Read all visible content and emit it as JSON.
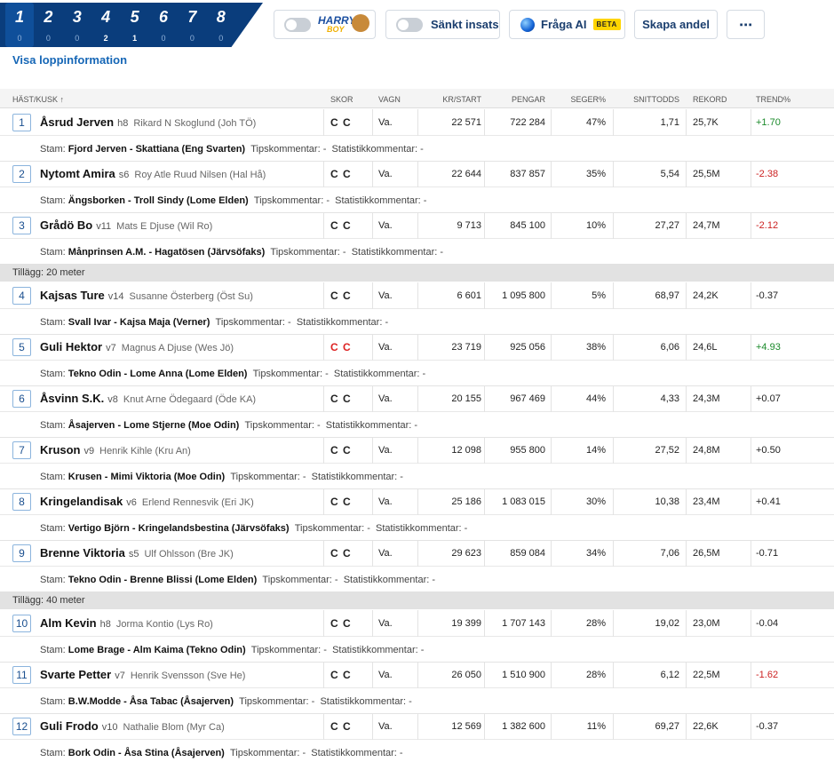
{
  "legs": [
    {
      "num": "1",
      "count": "0",
      "active": true
    },
    {
      "num": "2",
      "count": "0"
    },
    {
      "num": "3",
      "count": "0"
    },
    {
      "num": "4",
      "count": "2"
    },
    {
      "num": "5",
      "count": "1"
    },
    {
      "num": "6",
      "count": "0"
    },
    {
      "num": "7",
      "count": "0"
    },
    {
      "num": "8",
      "count": "0"
    }
  ],
  "toolbar": {
    "harry_line1": "HARRY",
    "harry_line2": "BOY",
    "reduced_stake_label": "Sänkt insats",
    "ask_ai_label": "Fråga AI",
    "beta_badge": "BETA",
    "create_share_label": "Skapa andel",
    "more_label": "⋯"
  },
  "race_info_link": "Visa loppinformation",
  "columns": {
    "horse": "HÄST/KUSK ↑",
    "shoes": "SKOR",
    "sulky": "VAGN",
    "kr_start": "KR/START",
    "money": "PENGAR",
    "win_pct": "SEGER%",
    "avg_odds": "SNITTODDS",
    "record": "REKORD",
    "trend": "TREND%"
  },
  "labels": {
    "stam": "Stam:",
    "tips": "Tipskommentar: -",
    "stat": "Statistikkommentar: -"
  },
  "rows": [
    {
      "type": "horse",
      "nr": "1",
      "name": "Åsrud Jerven",
      "age": "h8",
      "driver": "Rikard N Skoglund (Joh TÖ)",
      "shoes": "C C",
      "shoes_red": false,
      "sulky": "Va.",
      "kr_start": "22 571",
      "money": "722 284",
      "win": "47%",
      "odds": "1,71",
      "record": "25,7K",
      "trend": "+1.70",
      "trend_sign": "pos",
      "stam": "Fjord Jerven - Skattiana (Eng Svarten)"
    },
    {
      "type": "horse",
      "nr": "2",
      "name": "Nytomt Amira",
      "age": "s6",
      "driver": "Roy Atle Ruud Nilsen (Hal Hå)",
      "shoes": "C C",
      "shoes_red": false,
      "sulky": "Va.",
      "kr_start": "22 644",
      "money": "837 857",
      "win": "35%",
      "odds": "5,54",
      "record": "25,5M",
      "trend": "-2.38",
      "trend_sign": "neg",
      "stam": "Ängsborken - Troll Sindy (Lome Elden)"
    },
    {
      "type": "horse",
      "nr": "3",
      "name": "Grådö Bo",
      "age": "v11",
      "driver": "Mats E Djuse (Wil Ro)",
      "shoes": "C C",
      "shoes_red": false,
      "sulky": "Va.",
      "kr_start": "9 713",
      "money": "845 100",
      "win": "10%",
      "odds": "27,27",
      "record": "24,7M",
      "trend": "-2.12",
      "trend_sign": "neg",
      "stam": "Månprinsen A.M. - Hagatösen (Järvsöfaks)"
    },
    {
      "type": "sep",
      "label": "Tillägg: 20 meter"
    },
    {
      "type": "horse",
      "nr": "4",
      "name": "Kajsas Ture",
      "age": "v14",
      "driver": "Susanne Österberg (Öst Su)",
      "shoes": "C C",
      "shoes_red": false,
      "sulky": "Va.",
      "kr_start": "6 601",
      "money": "1 095 800",
      "win": "5%",
      "odds": "68,97",
      "record": "24,2K",
      "trend": "-0.37",
      "trend_sign": "none",
      "stam": "Svall Ivar - Kajsa Maja (Verner)"
    },
    {
      "type": "horse",
      "nr": "5",
      "name": "Guli Hektor",
      "age": "v7",
      "driver": "Magnus A Djuse (Wes Jö)",
      "shoes": "C C",
      "shoes_red": true,
      "sulky": "Va.",
      "kr_start": "23 719",
      "money": "925 056",
      "win": "38%",
      "odds": "6,06",
      "record": "24,6L",
      "trend": "+4.93",
      "trend_sign": "pos",
      "stam": "Tekno Odin - Lome Anna (Lome Elden)"
    },
    {
      "type": "horse",
      "nr": "6",
      "name": "Åsvinn S.K.",
      "age": "v8",
      "driver": "Knut Arne Ödegaard (Öde KA)",
      "shoes": "C C",
      "shoes_red": false,
      "sulky": "Va.",
      "kr_start": "20 155",
      "money": "967 469",
      "win": "44%",
      "odds": "4,33",
      "record": "24,3M",
      "trend": "+0.07",
      "trend_sign": "none",
      "stam": "Åsajerven - Lome Stjerne (Moe Odin)"
    },
    {
      "type": "horse",
      "nr": "7",
      "name": "Kruson",
      "age": "v9",
      "driver": "Henrik Kihle (Kru An)",
      "shoes": "C C",
      "shoes_red": false,
      "sulky": "Va.",
      "kr_start": "12 098",
      "money": "955 800",
      "win": "14%",
      "odds": "27,52",
      "record": "24,8M",
      "trend": "+0.50",
      "trend_sign": "none",
      "stam": "Krusen - Mimi Viktoria (Moe Odin)"
    },
    {
      "type": "horse",
      "nr": "8",
      "name": "Kringelandisak",
      "age": "v6",
      "driver": "Erlend Rennesvik (Eri JK)",
      "shoes": "C C",
      "shoes_red": false,
      "sulky": "Va.",
      "kr_start": "25 186",
      "money": "1 083 015",
      "win": "30%",
      "odds": "10,38",
      "record": "23,4M",
      "trend": "+0.41",
      "trend_sign": "none",
      "stam": "Vertigo Björn - Kringelandsbestina (Järvsöfaks)"
    },
    {
      "type": "horse",
      "nr": "9",
      "name": "Brenne Viktoria",
      "age": "s5",
      "driver": "Ulf Ohlsson (Bre JK)",
      "shoes": "C C",
      "shoes_red": false,
      "sulky": "Va.",
      "kr_start": "29 623",
      "money": "859 084",
      "win": "34%",
      "odds": "7,06",
      "record": "26,5M",
      "trend": "-0.71",
      "trend_sign": "none",
      "stam": "Tekno Odin - Brenne Blissi (Lome Elden)"
    },
    {
      "type": "sep",
      "label": "Tillägg: 40 meter"
    },
    {
      "type": "horse",
      "nr": "10",
      "name": "Alm Kevin",
      "age": "h8",
      "driver": "Jorma Kontio (Lys Ro)",
      "shoes": "C C",
      "shoes_red": false,
      "sulky": "Va.",
      "kr_start": "19 399",
      "money": "1 707 143",
      "win": "28%",
      "odds": "19,02",
      "record": "23,0M",
      "trend": "-0.04",
      "trend_sign": "none",
      "stam": "Lome Brage - Alm Kaima (Tekno Odin)"
    },
    {
      "type": "horse",
      "nr": "11",
      "name": "Svarte Petter",
      "age": "v7",
      "driver": "Henrik Svensson (Sve He)",
      "shoes": "C C",
      "shoes_red": false,
      "sulky": "Va.",
      "kr_start": "26 050",
      "money": "1 510 900",
      "win": "28%",
      "odds": "6,12",
      "record": "22,5M",
      "trend": "-1.62",
      "trend_sign": "neg",
      "stam": "B.W.Modde - Åsa Tabac (Åsajerven)"
    },
    {
      "type": "horse",
      "nr": "12",
      "name": "Guli Frodo",
      "age": "v10",
      "driver": "Nathalie Blom (Myr Ca)",
      "shoes": "C C",
      "shoes_red": false,
      "sulky": "Va.",
      "kr_start": "12 569",
      "money": "1 382 600",
      "win": "11%",
      "odds": "69,27",
      "record": "22,6K",
      "trend": "-0.37",
      "trend_sign": "none",
      "stam": "Bork Odin - Åsa Stina (Åsajerven)"
    }
  ]
}
